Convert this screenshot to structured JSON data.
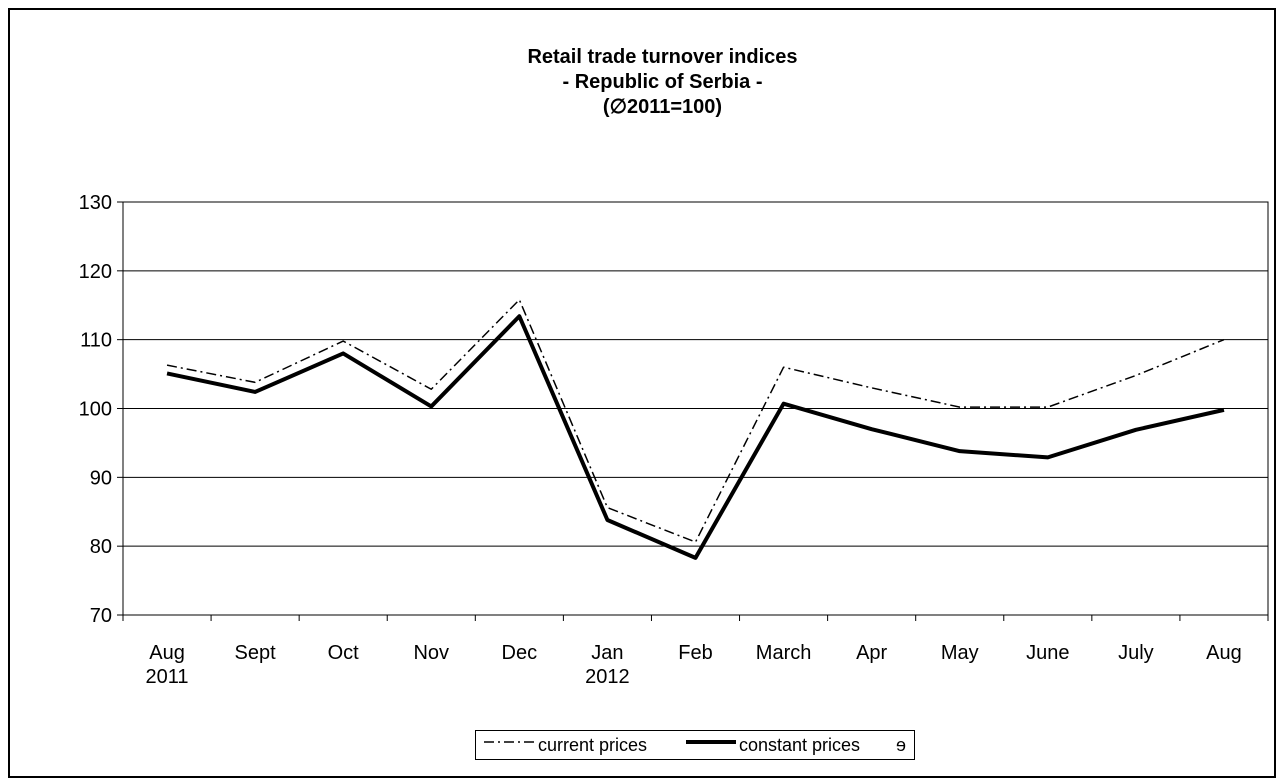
{
  "chart_data": {
    "type": "line",
    "title_lines": [
      "Retail trade turnover indices",
      "- Republic of Serbia -",
      "(∅2011=100)"
    ],
    "x": [
      "Aug|2011",
      "Sept",
      "Oct",
      "Nov",
      "Dec",
      "Jan|2012",
      "Feb",
      "March",
      "Apr",
      "May",
      "June",
      "July",
      "Aug"
    ],
    "series": [
      {
        "name": "current prices",
        "style": "dash-dot",
        "width": 1.5,
        "color": "#000000",
        "values": [
          106.3,
          103.8,
          109.8,
          102.8,
          115.8,
          85.6,
          80.6,
          106.0,
          103.0,
          100.2,
          100.2,
          104.8,
          110.0
        ]
      },
      {
        "name": "constant prices",
        "style": "solid",
        "width": 4,
        "color": "#000000",
        "values": [
          105.1,
          102.4,
          108.0,
          100.3,
          113.4,
          83.8,
          78.3,
          100.7,
          97.0,
          93.8,
          92.9,
          96.9,
          99.8
        ]
      }
    ],
    "ylim": [
      70,
      130
    ],
    "yticks": [
      70,
      80,
      90,
      100,
      110,
      120,
      130
    ],
    "xlabel": "",
    "ylabel": "",
    "grid": "horizontal",
    "legend_position": "bottom",
    "legend_trailing_glyph": "ɘ"
  }
}
